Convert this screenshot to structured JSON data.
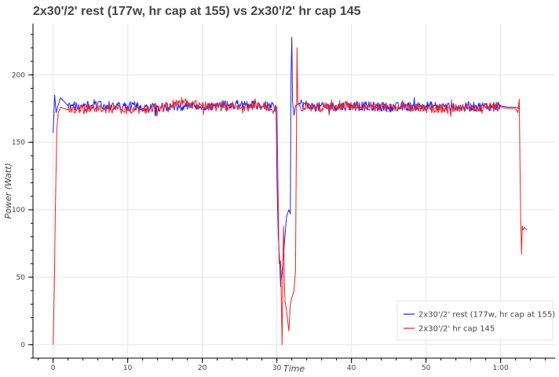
{
  "chart_data": {
    "type": "line",
    "title": "2x30'/2' rest (177w, hr cap at 155) vs 2x30'/2' hr cap 145",
    "xlabel": "Time",
    "ylabel": "Power (Watt)",
    "xlim": [
      -2.7,
      67.3
    ],
    "ylim": [
      -10,
      238
    ],
    "x_ticks": [
      {
        "value": 0,
        "label": "0"
      },
      {
        "value": 10,
        "label": "10"
      },
      {
        "value": 20,
        "label": "20"
      },
      {
        "value": 30,
        "label": "30"
      },
      {
        "value": 40,
        "label": "40"
      },
      {
        "value": 50,
        "label": "50"
      },
      {
        "value": 60,
        "label": "1:00"
      }
    ],
    "y_ticks": [
      {
        "value": 0,
        "label": "0"
      },
      {
        "value": 50,
        "label": "50"
      },
      {
        "value": 100,
        "label": "100"
      },
      {
        "value": 150,
        "label": "150"
      },
      {
        "value": 200,
        "label": "200"
      }
    ],
    "grid": true,
    "legend_position": "bottom-right",
    "series": [
      {
        "name": "2x30'/2' rest (177w, hr cap at 155)",
        "color": "#2222ee",
        "noise": 3.5,
        "x": [
          0.0,
          0.1,
          0.2,
          0.4,
          0.6,
          1.0,
          2.0,
          5.0,
          10.0,
          15.0,
          20.0,
          25.0,
          28.0,
          29.9,
          30.0,
          30.2,
          30.4,
          30.5,
          30.6,
          30.8,
          31.0,
          31.3,
          31.6,
          31.8,
          31.9,
          32.0,
          32.1,
          32.3,
          32.5,
          33.0,
          35.0,
          40.0,
          45.0,
          50.0,
          55.0,
          60.0,
          61.0,
          62.0,
          62.6
        ],
        "y": [
          157,
          170,
          185,
          172,
          176,
          183,
          177,
          177,
          177,
          176,
          177,
          178,
          177,
          176,
          125,
          80,
          60,
          43,
          50,
          60,
          75,
          95,
          100,
          97,
          200,
          228,
          180,
          170,
          177,
          179,
          176,
          177,
          176,
          177,
          176,
          177,
          176,
          176,
          175
        ]
      },
      {
        "name": "2x30'/2' hr cap 145",
        "color": "#ee2222",
        "noise": 3.5,
        "x": [
          0.0,
          0.15,
          0.3,
          0.5,
          0.7,
          1.0,
          2.0,
          5.0,
          10.0,
          15.0,
          17.0,
          20.0,
          25.0,
          28.0,
          30.0,
          30.3,
          30.5,
          30.6,
          30.7,
          30.8,
          30.9,
          31.0,
          31.1,
          31.3,
          31.6,
          31.8,
          32.0,
          32.3,
          32.5,
          32.7,
          32.8,
          33.0,
          35.0,
          40.0,
          45.0,
          50.0,
          55.0,
          60.0,
          61.0,
          62.0,
          62.3,
          62.5,
          62.6,
          62.7,
          62.75,
          62.8,
          62.9,
          63.0,
          63.2,
          63.5
        ],
        "y": [
          0,
          40,
          100,
          160,
          172,
          176,
          174,
          175,
          174,
          176,
          180,
          177,
          176,
          177,
          176,
          60,
          62,
          30,
          0,
          60,
          88,
          45,
          32,
          25,
          10,
          30,
          35,
          40,
          55,
          220,
          180,
          177,
          176,
          177,
          176,
          175,
          176,
          176,
          175,
          175,
          172,
          182,
          130,
          90,
          80,
          67,
          88,
          85,
          87,
          85
        ]
      }
    ]
  }
}
